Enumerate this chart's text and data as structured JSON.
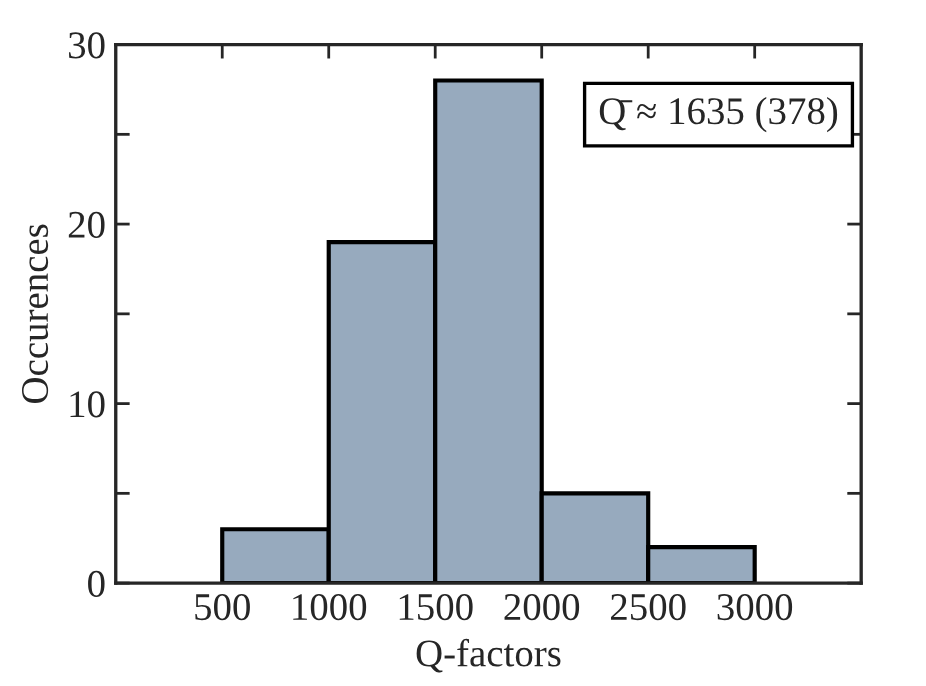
{
  "chart_data": {
    "type": "histogram",
    "bins": [
      500,
      1000,
      1500,
      2000,
      2500,
      3000
    ],
    "values": [
      3,
      19,
      28,
      5,
      2
    ],
    "color": "#97aabe",
    "xlabel": "Q-factors",
    "ylabel": "Occurences",
    "xlim": [
      0,
      3500
    ],
    "xticks": [
      500,
      1000,
      1500,
      2000,
      2500,
      3000
    ],
    "ylim": [
      0,
      30
    ],
    "yticks": [
      0,
      {
        "value": 5,
        "label": null
      },
      10,
      {
        "value": 15,
        "label": null
      },
      20,
      {
        "value": 25,
        "label": null
      },
      30
    ],
    "annotations": [
      "Q̄ ≈ 1635 (378)"
    ],
    "grid": false,
    "legend": false
  }
}
